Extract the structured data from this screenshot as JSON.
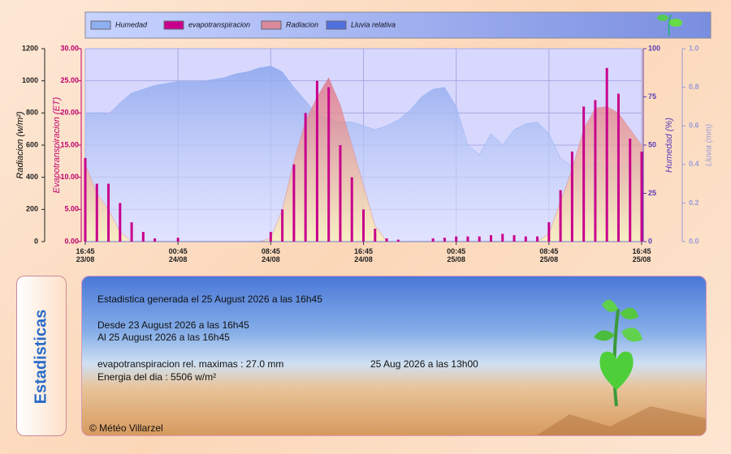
{
  "chart_data": {
    "type": "combo",
    "x": [
      "23/08 16:45",
      "23/08 17:45",
      "23/08 18:45",
      "23/08 19:45",
      "23/08 20:45",
      "23/08 21:45",
      "23/08 22:45",
      "23/08 23:45",
      "24/08 00:45",
      "24/08 01:45",
      "24/08 02:45",
      "24/08 03:45",
      "24/08 04:45",
      "24/08 05:45",
      "24/08 06:45",
      "24/08 07:45",
      "24/08 08:45",
      "24/08 09:45",
      "24/08 10:45",
      "24/08 11:45",
      "24/08 12:45",
      "24/08 13:45",
      "24/08 14:45",
      "24/08 15:45",
      "24/08 16:45",
      "24/08 17:45",
      "24/08 18:45",
      "24/08 19:45",
      "24/08 20:45",
      "24/08 21:45",
      "24/08 22:45",
      "24/08 23:45",
      "25/08 00:45",
      "25/08 01:45",
      "25/08 02:45",
      "25/08 03:45",
      "25/08 04:45",
      "25/08 05:45",
      "25/08 06:45",
      "25/08 07:45",
      "25/08 08:45",
      "25/08 09:45",
      "25/08 10:45",
      "25/08 11:45",
      "25/08 12:45",
      "25/08 13:45",
      "25/08 14:45",
      "25/08 15:45",
      "25/08 16:45"
    ],
    "xlim": [
      "23/08 16:45",
      "25/08 16:45"
    ],
    "xticks": [
      {
        "value": "23/08 16:45",
        "label": "16:45\n23/08"
      },
      {
        "value": "24/08 00:45",
        "label": "00:45\n24/08"
      },
      {
        "value": "24/08 08:45",
        "label": "08:45\n24/08"
      },
      {
        "value": "24/08 16:45",
        "label": "16:45\n24/08"
      },
      {
        "value": "25/08 00:45",
        "label": "00:45\n25/08"
      },
      {
        "value": "25/08 08:45",
        "label": "08:45\n25/08"
      },
      {
        "value": "25/08 16:45",
        "label": "16:45\n25/08"
      }
    ],
    "y_label": "Radiacion (w/m²)",
    "ylim": [
      0,
      1200
    ],
    "yticks": [
      0,
      200,
      400,
      600,
      800,
      1000,
      1200
    ],
    "y2_label": "Evapotranspiracion (ET)",
    "y2lim": [
      0,
      30
    ],
    "y2ticks": [
      {
        "value": 0,
        "label": "0.00"
      },
      {
        "value": 5,
        "label": "5.00"
      },
      {
        "value": 10,
        "label": "10.00"
      },
      {
        "value": 15,
        "label": "15.00"
      },
      {
        "value": 20,
        "label": "20.00"
      },
      {
        "value": 25,
        "label": "25.00"
      },
      {
        "value": 30,
        "label": "30.00"
      }
    ],
    "y3_label": "Humedad (%)",
    "y3lim": [
      0,
      100
    ],
    "y3ticks": [
      0,
      25,
      50,
      75,
      100
    ],
    "y4_label": "Lluvia (mm)",
    "y4lim": [
      0,
      1
    ],
    "y4ticks": [
      {
        "value": 0,
        "label": "0.0"
      },
      {
        "value": 0.2,
        "label": "0.2"
      },
      {
        "value": 0.4,
        "label": "0.4"
      },
      {
        "value": 0.6,
        "label": "0.6"
      },
      {
        "value": 0.8,
        "label": "0.8"
      },
      {
        "value": 1,
        "label": "1.0"
      }
    ],
    "grid": true,
    "series": [
      {
        "name": "Humedad",
        "type": "area",
        "axis": "y3",
        "color": "#8fb0f0",
        "values": [
          66,
          67,
          66,
          72,
          77,
          79,
          81,
          82,
          83,
          83,
          83,
          84,
          85,
          87,
          88,
          90,
          91,
          88,
          80,
          73,
          66,
          64,
          62,
          62,
          60,
          58,
          60,
          63,
          68,
          75,
          79,
          80,
          70,
          50,
          45,
          56,
          50,
          58,
          61,
          62,
          56,
          43,
          39,
          39,
          41,
          39,
          39,
          40,
          43
        ]
      },
      {
        "name": "evapotranspiracion",
        "type": "bar",
        "axis": "y2",
        "color": "#c8008c",
        "values": [
          13,
          9,
          9,
          6,
          3,
          1.5,
          0.5,
          0,
          0.6,
          0,
          0,
          0,
          0,
          0,
          0,
          0,
          1.5,
          5,
          12,
          20,
          25,
          24,
          15,
          10,
          5,
          2,
          0.5,
          0.3,
          0,
          0,
          0.5,
          0.6,
          0.8,
          0.8,
          0.8,
          1,
          1.2,
          1,
          0.8,
          0.8,
          3,
          8,
          14,
          21,
          22,
          27,
          23,
          16,
          14
        ]
      },
      {
        "name": "Radiacion",
        "type": "area",
        "axis": "y",
        "color": "#d88a9a",
        "values": [
          480,
          300,
          200,
          60,
          0,
          0,
          0,
          0,
          0,
          0,
          0,
          0,
          0,
          0,
          0,
          0,
          20,
          200,
          500,
          750,
          900,
          1020,
          850,
          600,
          350,
          100,
          0,
          0,
          0,
          0,
          0,
          0,
          0,
          0,
          0,
          0,
          0,
          0,
          0,
          0,
          50,
          250,
          450,
          700,
          830,
          840,
          800,
          700,
          600
        ]
      },
      {
        "name": "Lluvia relativa",
        "type": "area",
        "axis": "y4",
        "color": "#5070e0",
        "values": [
          0,
          0,
          0,
          0,
          0,
          0,
          0,
          0,
          0,
          0,
          0,
          0,
          0,
          0,
          0,
          0,
          0,
          0,
          0,
          0,
          0,
          0,
          0,
          0,
          0,
          0,
          0,
          0,
          0,
          0,
          0,
          0,
          0,
          0,
          0,
          0,
          0,
          0,
          0,
          0,
          0,
          0,
          0,
          0,
          0,
          0,
          0,
          0,
          0
        ]
      }
    ]
  },
  "sidebar_title": "Estadisticas",
  "stats": {
    "generated": "Estadistica generada el 25 August 2026 a las 16h45",
    "from": "Desde 23 August 2026 a las 16h45",
    "to": "Al 25 August 2026 a las 16h45",
    "et_max": "evapotranspiracion rel. maximas : 27.0 mm",
    "et_max_time": "25 Aug 2026 a las 13h00",
    "energy": "Energia del dia : 5506 w/m²"
  },
  "footer": "© Météo Villarzel"
}
